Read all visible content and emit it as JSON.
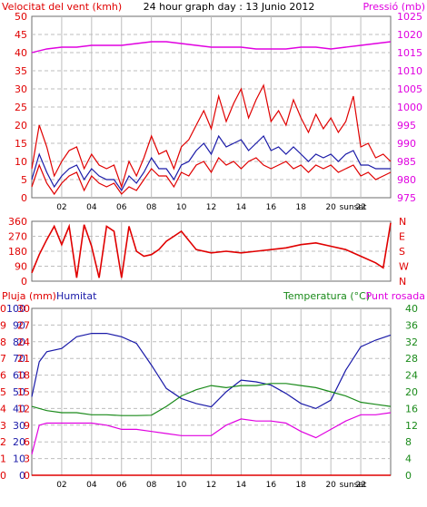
{
  "colors": {
    "wind": "#e00000",
    "gust": "#e00000",
    "wind_avg": "#1a1aa8",
    "pressure": "#e000e0",
    "direction": "#e00000",
    "rain": "#e00000",
    "humidity": "#1a1aa8",
    "temperature": "#1a8a1a",
    "dewpoint": "#e000e0",
    "grid": "#bdbdbd",
    "frame": "#6e6e6e",
    "title": "#000000"
  },
  "chart_data": [
    {
      "type": "line",
      "title": "24 hour graph day : 13 Junio 2012",
      "ylabel_left": "Velocitat del vent (kmh)",
      "ylabel_right": "Pressió (mb)",
      "ylim_left": [
        0,
        50
      ],
      "ylim_right": [
        975,
        1025
      ],
      "yticks_left": [
        "0",
        "5",
        "10",
        "15",
        "20",
        "25",
        "30",
        "35",
        "40",
        "45",
        "50"
      ],
      "yticks_right": [
        "975",
        "980",
        "985",
        "990",
        "995",
        "1000",
        "1005",
        "1010",
        "1015",
        "1020",
        "1025"
      ],
      "xticks": [
        "02",
        "04",
        "06",
        "08",
        "10",
        "12",
        "14",
        "16",
        "18",
        "20",
        "22",
        "sunset"
      ],
      "x_unit": "hour",
      "xlim": [
        0,
        24
      ],
      "grid": true,
      "series": [
        {
          "key": "gust",
          "axis": "left",
          "x": [
            0,
            0.5,
            1,
            1.5,
            2,
            2.5,
            3,
            3.5,
            4,
            4.5,
            5,
            5.5,
            6,
            6.5,
            7,
            7.5,
            8,
            8.5,
            9,
            9.5,
            10,
            10.5,
            11,
            11.5,
            12,
            12.5,
            13,
            13.5,
            14,
            14.5,
            15,
            15.5,
            16,
            16.5,
            17,
            17.5,
            18,
            18.5,
            19,
            19.5,
            20,
            20.5,
            21,
            21.5,
            22,
            22.5,
            23,
            23.5,
            24
          ],
          "values": [
            8,
            20,
            14,
            6,
            10,
            13,
            14,
            8,
            12,
            9,
            8,
            9,
            3,
            10,
            6,
            11,
            17,
            12,
            13,
            8,
            14,
            16,
            20,
            24,
            19,
            28,
            21,
            26,
            30,
            22,
            27,
            31,
            21,
            24,
            20,
            27,
            22,
            18,
            23,
            19,
            22,
            18,
            21,
            28,
            14,
            15,
            11,
            12,
            10
          ]
        },
        {
          "key": "wind_avg",
          "axis": "left",
          "x": [
            0,
            0.5,
            1,
            1.5,
            2,
            2.5,
            3,
            3.5,
            4,
            4.5,
            5,
            5.5,
            6,
            6.5,
            7,
            7.5,
            8,
            8.5,
            9,
            9.5,
            10,
            10.5,
            11,
            11.5,
            12,
            12.5,
            13,
            13.5,
            14,
            14.5,
            15,
            15.5,
            16,
            16.5,
            17,
            17.5,
            18,
            18.5,
            19,
            19.5,
            20,
            20.5,
            21,
            21.5,
            22,
            22.5,
            23,
            23.5,
            24
          ],
          "values": [
            5,
            12,
            7,
            3,
            6,
            8,
            9,
            5,
            8,
            6,
            5,
            5,
            2,
            6,
            4,
            7,
            11,
            8,
            8,
            5,
            9,
            10,
            13,
            15,
            12,
            17,
            14,
            15,
            16,
            13,
            15,
            17,
            13,
            14,
            12,
            14,
            12,
            10,
            12,
            11,
            12,
            10,
            12,
            13,
            9,
            9,
            8,
            8,
            8
          ]
        },
        {
          "key": "wind",
          "axis": "left",
          "x": [
            0,
            0.5,
            1,
            1.5,
            2,
            2.5,
            3,
            3.5,
            4,
            4.5,
            5,
            5.5,
            6,
            6.5,
            7,
            7.5,
            8,
            8.5,
            9,
            9.5,
            10,
            10.5,
            11,
            11.5,
            12,
            12.5,
            13,
            13.5,
            14,
            14.5,
            15,
            15.5,
            16,
            16.5,
            17,
            17.5,
            18,
            18.5,
            19,
            19.5,
            20,
            20.5,
            21,
            21.5,
            22,
            22.5,
            23,
            23.5,
            24
          ],
          "values": [
            3,
            9,
            4,
            1,
            4,
            6,
            7,
            2,
            6,
            4,
            3,
            4,
            1,
            3,
            2,
            5,
            8,
            6,
            6,
            3,
            7,
            6,
            9,
            10,
            7,
            11,
            9,
            10,
            8,
            10,
            11,
            9,
            8,
            9,
            10,
            8,
            9,
            7,
            9,
            8,
            9,
            7,
            8,
            9,
            6,
            7,
            5,
            6,
            7
          ]
        },
        {
          "key": "pressure",
          "axis": "right",
          "x": [
            0,
            1,
            2,
            3,
            4,
            5,
            6,
            7,
            8,
            9,
            10,
            11,
            12,
            13,
            14,
            15,
            16,
            17,
            18,
            19,
            20,
            21,
            22,
            23,
            24
          ],
          "values": [
            1015,
            1016,
            1016.5,
            1016.5,
            1017,
            1017,
            1017,
            1017.5,
            1018,
            1018,
            1017.5,
            1017,
            1016.5,
            1016.5,
            1016.5,
            1016,
            1016,
            1016,
            1016.5,
            1016.5,
            1016,
            1016.5,
            1017,
            1017.5,
            1018
          ]
        }
      ]
    },
    {
      "type": "line",
      "ylim": [
        0,
        360
      ],
      "yticks": [
        "0",
        "90",
        "180",
        "270",
        "360"
      ],
      "right_labels": [
        "N",
        "W",
        "S",
        "E",
        "N"
      ],
      "xlim": [
        0,
        24
      ],
      "grid": true,
      "series": [
        {
          "key": "direction",
          "x": [
            0,
            0.5,
            1,
            1.5,
            2,
            2.5,
            3,
            3.5,
            4,
            4.5,
            5,
            5.5,
            6,
            6.5,
            7,
            7.5,
            8,
            8.5,
            9,
            9.5,
            10,
            11,
            12,
            13,
            14,
            15,
            16,
            17,
            18,
            19,
            20,
            21,
            22,
            23,
            23.5,
            24
          ],
          "values": [
            50,
            160,
            250,
            330,
            220,
            330,
            20,
            340,
            210,
            20,
            330,
            300,
            20,
            330,
            180,
            150,
            160,
            190,
            240,
            270,
            300,
            190,
            170,
            180,
            170,
            180,
            190,
            200,
            220,
            230,
            210,
            190,
            150,
            110,
            80,
            350
          ]
        }
      ]
    },
    {
      "type": "line",
      "ylabel_left": "Pluja (mm)",
      "ylabel_left2": "Humitat",
      "ylabel_right": "Temperatura (°C)",
      "ylabel_right2": "Punt rosada",
      "ylim_rain": [
        0,
        10
      ],
      "ylim_humidity": [
        0,
        100
      ],
      "ylim_temp": [
        0,
        40
      ],
      "yticks_rain": [
        "0",
        "1",
        "2",
        "3",
        "4",
        "5",
        "6",
        "7",
        "8",
        "9",
        "10"
      ],
      "yticks_humidity": [
        "0",
        "10",
        "20",
        "30",
        "40",
        "50",
        "60",
        "70",
        "80",
        "90",
        "100"
      ],
      "yticks_temp_left": [
        "0",
        "3",
        "6",
        "9",
        "12",
        "15",
        "18",
        "21",
        "24",
        "27",
        "30"
      ],
      "yticks_temp_right": [
        "0",
        "4",
        "8",
        "12",
        "16",
        "20",
        "24",
        "28",
        "32",
        "36",
        "40"
      ],
      "xticks": [
        "02",
        "04",
        "06",
        "08",
        "10",
        "12",
        "14",
        "16",
        "18",
        "20",
        "22",
        "sunset"
      ],
      "xlim": [
        0,
        24
      ],
      "grid": true,
      "series": [
        {
          "key": "humidity",
          "axis": "humidity",
          "x": [
            0,
            0.5,
            1,
            2,
            3,
            4,
            5,
            6,
            7,
            8,
            9,
            10,
            11,
            12,
            13,
            14,
            15,
            16,
            17,
            18,
            19,
            20,
            21,
            22,
            23,
            24
          ],
          "values": [
            47,
            68,
            74,
            76,
            83,
            85,
            85,
            83,
            79,
            66,
            52,
            46,
            43,
            41,
            50,
            57,
            56,
            54,
            49,
            43,
            40,
            45,
            63,
            77,
            81,
            84
          ]
        },
        {
          "key": "temperature",
          "axis": "temp",
          "x": [
            0,
            1,
            2,
            3,
            4,
            5,
            6,
            7,
            8,
            9,
            10,
            11,
            12,
            13,
            14,
            15,
            16,
            17,
            18,
            19,
            20,
            21,
            22,
            23,
            24
          ],
          "values": [
            16.5,
            15.5,
            15.0,
            15.0,
            14.5,
            14.5,
            14.3,
            14.3,
            14.4,
            16.5,
            19.0,
            20.5,
            21.5,
            21.0,
            21.5,
            21.5,
            22.0,
            22.0,
            21.5,
            21.0,
            20.0,
            19.0,
            17.5,
            17.0,
            16.5
          ]
        },
        {
          "key": "dewpoint",
          "axis": "temp",
          "x": [
            0,
            0.5,
            1,
            2,
            3,
            4,
            5,
            6,
            7,
            8,
            9,
            10,
            11,
            12,
            13,
            14,
            15,
            16,
            17,
            18,
            19,
            20,
            21,
            22,
            23,
            24
          ],
          "values": [
            5,
            12,
            12.5,
            12.5,
            12.5,
            12.5,
            12.0,
            11.0,
            11.0,
            10.5,
            10.0,
            9.5,
            9.5,
            9.5,
            12.0,
            13.5,
            13.0,
            13.0,
            12.5,
            10.5,
            9.0,
            11.0,
            13.0,
            14.5,
            14.5,
            15.0
          ]
        },
        {
          "key": "rain",
          "axis": "rain",
          "x": [
            0,
            24
          ],
          "values": [
            0,
            0
          ]
        }
      ]
    }
  ]
}
